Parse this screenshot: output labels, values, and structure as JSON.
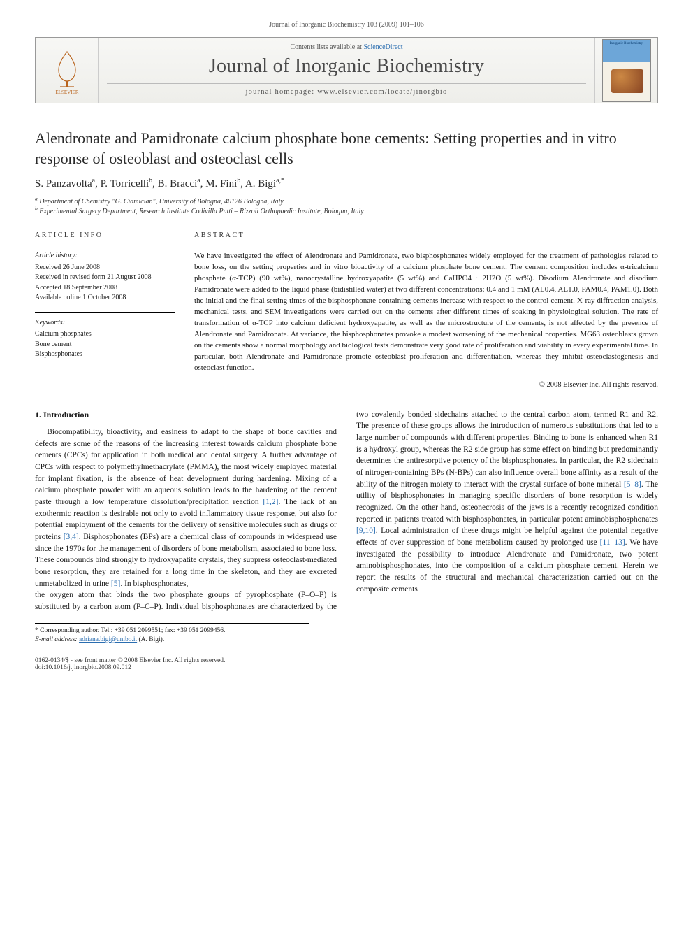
{
  "running_head": "Journal of Inorganic Biochemistry 103 (2009) 101–106",
  "masthead": {
    "contents_prefix": "Contents lists available at ",
    "contents_link": "ScienceDirect",
    "journal_name": "Journal of Inorganic Biochemistry",
    "homepage_label": "journal homepage: www.elsevier.com/locate/jinorgbio",
    "publisher": "ELSEVIER",
    "cover_text": "Inorganic Biochemistry"
  },
  "title": "Alendronate and Pamidronate calcium phosphate bone cements: Setting properties and in vitro response of osteoblast and osteoclast cells",
  "authors_html": "S. Panzavolta<sup>a</sup>, P. Torricelli<sup>b</sup>, B. Bracci<sup>a</sup>, M. Fini<sup>b</sup>, A. Bigi<sup>a,*</sup>",
  "affiliations": [
    "a Department of Chemistry \"G. Ciamician\", University of Bologna, 40126 Bologna, Italy",
    "b Experimental Surgery Department, Research Institute Codivilla Putti – Rizzoli Orthopaedic Institute, Bologna, Italy"
  ],
  "article_info_heading": "ARTICLE INFO",
  "abstract_heading": "ABSTRACT",
  "history": {
    "heading": "Article history:",
    "items": [
      "Received 26 June 2008",
      "Received in revised form 21 August 2008",
      "Accepted 18 September 2008",
      "Available online 1 October 2008"
    ]
  },
  "keywords": {
    "heading": "Keywords:",
    "items": [
      "Calcium phosphates",
      "Bone cement",
      "Bisphosphonates"
    ]
  },
  "abstract": "We have investigated the effect of Alendronate and Pamidronate, two bisphosphonates widely employed for the treatment of pathologies related to bone loss, on the setting properties and in vitro bioactivity of a calcium phosphate bone cement. The cement composition includes α-tricalcium phosphate (α-TCP) (90 wt%), nanocrystalline hydroxyapatite (5 wt%) and CaHPO4 · 2H2O (5 wt%). Disodium Alendronate and disodium Pamidronate were added to the liquid phase (bidistilled water) at two different concentrations: 0.4 and 1 mM (AL0.4, AL1.0, PAM0.4, PAM1.0). Both the initial and the final setting times of the bisphosphonate-containing cements increase with respect to the control cement. X-ray diffraction analysis, mechanical tests, and SEM investigations were carried out on the cements after different times of soaking in physiological solution. The rate of transformation of α-TCP into calcium deficient hydroxyapatite, as well as the microstructure of the cements, is not affected by the presence of Alendronate and Pamidronate. At variance, the bisphosphonates provoke a modest worsening of the mechanical properties. MG63 osteoblasts grown on the cements show a normal morphology and biological tests demonstrate very good rate of proliferation and viability in every experimental time. In particular, both Alendronate and Pamidronate promote osteoblast proliferation and differentiation, whereas they inhibit osteoclastogenesis and osteoclast function.",
  "copyright": "© 2008 Elsevier Inc. All rights reserved.",
  "section1_heading": "1. Introduction",
  "body_col1": "Biocompatibility, bioactivity, and easiness to adapt to the shape of bone cavities and defects are some of the reasons of the increasing interest towards calcium phosphate bone cements (CPCs) for application in both medical and dental surgery. A further advantage of CPCs with respect to polymethylmethacrylate (PMMA), the most widely employed material for implant fixation, is the absence of heat development during hardening. Mixing of a calcium phosphate powder with an aqueous solution leads to the hardening of the cement paste through a low temperature dissolution/precipitation reaction [1,2]. The lack of an exothermic reaction is desirable not only to avoid inflammatory tissue response, but also for potential employment of the cements for the delivery of sensitive molecules such as drugs or proteins [3,4]. Bisphosphonates (BPs) are a chemical class of compounds in widespread use since the 1970s for the management of disorders of bone metabolism, associated to bone loss. These compounds bind strongly to hydroxyapatite crystals, they suppress osteoclast-mediated bone resorption, they are retained for a long time in the skeleton, and they are excreted unmetabolized in urine [5]. In bisphosphonates,",
  "body_col2": "the oxygen atom that binds the two phosphate groups of pyrophosphate (P–O–P) is substituted by a carbon atom (P–C–P). Individual bisphosphonates are characterized by the two covalently bonded sidechains attached to the central carbon atom, termed R1 and R2. The presence of these groups allows the introduction of numerous substitutions that led to a large number of compounds with different properties. Binding to bone is enhanced when R1 is a hydroxyl group, whereas the R2 side group has some effect on binding but predominantly determines the antiresorptive potency of the bisphosphonates. In particular, the R2 sidechain of nitrogen-containing BPs (N-BPs) can also influence overall bone affinity as a result of the ability of the nitrogen moiety to interact with the crystal surface of bone mineral [5–8]. The utility of bisphosphonates in managing specific disorders of bone resorption is widely recognized. On the other hand, osteonecrosis of the jaws is a recently recognized condition reported in patients treated with bisphosphonates, in particular potent aminobisphosphonates [9,10]. Local administration of these drugs might be helpful against the potential negative effects of over suppression of bone metabolism caused by prolonged use [11–13]. We have investigated the possibility to introduce Alendronate and Pamidronate, two potent aminobisphosphonates, into the composition of a calcium phosphate cement. Herein we report the results of the structural and mechanical characterization carried out on the composite cements",
  "footnotes": {
    "corr": "* Corresponding author. Tel.: +39 051 2099551; fax: +39 051 2099456.",
    "email_label": "E-mail address:",
    "email": "adriana.bigi@unibo.it",
    "email_suffix": " (A. Bigi)."
  },
  "footer": {
    "left_line1": "0162-0134/$ - see front matter © 2008 Elsevier Inc. All rights reserved.",
    "left_line2": "doi:10.1016/j.jinorgbio.2008.09.012"
  },
  "colors": {
    "link": "#2a6db0",
    "text": "#1a1a1a",
    "muted": "#555555",
    "rule": "#000000"
  }
}
